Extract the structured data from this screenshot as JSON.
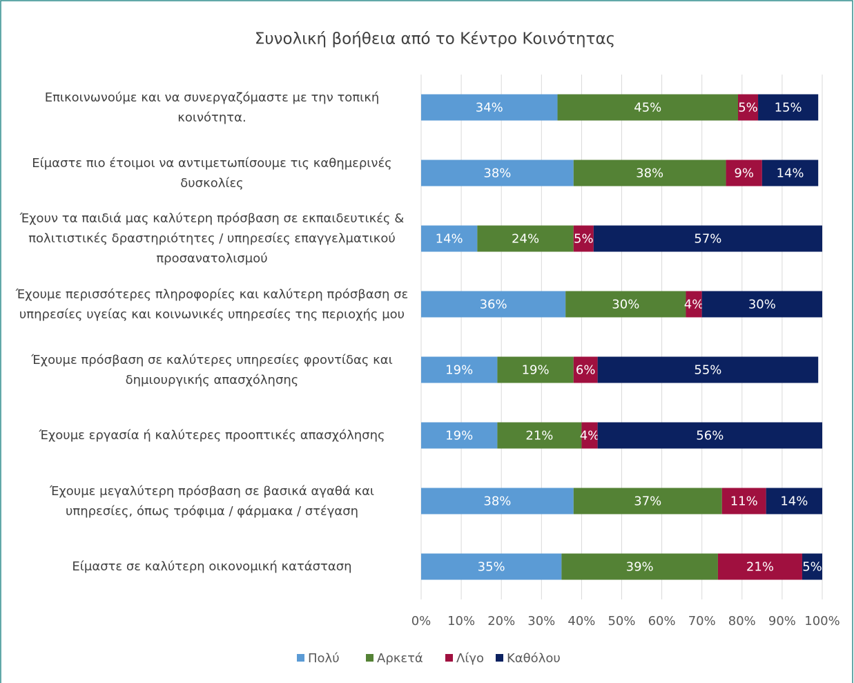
{
  "chart_data": {
    "type": "stacked-bar-horizontal",
    "title": "Συνολική βοήθεια από το Κέντρο Κοινότητας",
    "categories": [
      "Επικοινωνούμε και να συνεργαζόμαστε με την τοπική κοινότητα.",
      "Είμαστε πιο έτοιμοι να αντιμετωπίσουμε τις καθημερινές δυσκολίες",
      "Έχουν τα παιδιά μας καλύτερη πρόσβαση σε εκπαιδευτικές & πολιτιστικές δραστηριότητες / υπηρεσίες επαγγελματικού προσανατολισμού",
      "Έχουμε περισσότερες πληροφορίες και καλύτερη πρόσβαση σε υπηρεσίες υγείας και κοινωνικές υπηρεσίες της περιοχής μου",
      "Έχουμε πρόσβαση σε καλύτερες υπηρεσίες φροντίδας και δημιουργικής απασχόλησης",
      "Έχουμε εργασία ή καλύτερες προοπτικές απασχόλησης",
      "Έχουμε μεγαλύτερη πρόσβαση σε βασικά αγαθά και υπηρεσίες, όπως τρόφιμα / φάρμακα / στέγαση",
      "Είμαστε σε καλύτερη οικονομική κατάσταση"
    ],
    "series": [
      {
        "name": "Πολύ",
        "color": "#5b9bd5",
        "values": [
          34,
          38,
          14,
          36,
          19,
          19,
          38,
          35
        ],
        "value_labels": [
          "34%",
          "38%",
          "14%",
          "36%",
          "19%",
          "19%",
          "38%",
          "35%"
        ]
      },
      {
        "name": "Αρκετά",
        "color": "#548235",
        "values": [
          45,
          38,
          24,
          30,
          19,
          21,
          37,
          39
        ],
        "value_labels": [
          "45%",
          "38%",
          "24%",
          "30%",
          "19%",
          "21%",
          "37%",
          "39%"
        ]
      },
      {
        "name": "Λίγο",
        "color": "#a0103f",
        "values": [
          5,
          9,
          5,
          4,
          6,
          4,
          11,
          21
        ],
        "value_labels": [
          "5%",
          "9%",
          "5%",
          "4%",
          "6%",
          "4%",
          "11%",
          "21%"
        ]
      },
      {
        "name": "Καθόλου",
        "color": "#0b2160",
        "values": [
          15,
          14,
          57,
          30,
          55,
          56,
          14,
          5
        ],
        "value_labels": [
          "15%",
          "14%",
          "57%",
          "30%",
          "55%",
          "56%",
          "14%",
          "5%"
        ]
      }
    ],
    "xlim": [
      0,
      100
    ],
    "xticks": [
      {
        "value": 0,
        "label": "0%"
      },
      {
        "value": 10,
        "label": "10%"
      },
      {
        "value": 20,
        "label": "20%"
      },
      {
        "value": 30,
        "label": "30%"
      },
      {
        "value": 40,
        "label": "40%"
      },
      {
        "value": 50,
        "label": "50%"
      },
      {
        "value": 60,
        "label": "60%"
      },
      {
        "value": 70,
        "label": "70%"
      },
      {
        "value": 80,
        "label": "80%"
      },
      {
        "value": 90,
        "label": "90%"
      },
      {
        "value": 100,
        "label": "100%"
      }
    ],
    "grid": true,
    "legend": "bottom"
  }
}
